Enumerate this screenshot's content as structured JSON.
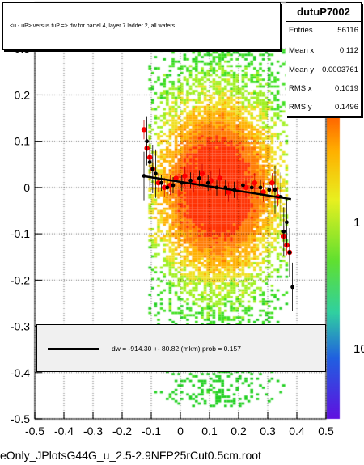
{
  "title": "<u - uP>       versus  tuP =>  dw for barrel 4, layer 7 ladder 2, all wafers",
  "stats": {
    "name": "dutuP7002",
    "rows": [
      {
        "k": "Entries",
        "v": "56116"
      },
      {
        "k": "Mean x",
        "v": "0.112"
      },
      {
        "k": "Mean y",
        "v": "0.0003761"
      },
      {
        "k": "RMS x",
        "v": "0.1019"
      },
      {
        "k": "RMS y",
        "v": "0.1496"
      }
    ]
  },
  "legend": {
    "text": "dw = -914.30 +- 80.82 (mkm) prob = 0.157"
  },
  "file_label": "eOnly_JPlotsG44G_u_2.5-2.9NFP25rCut0.5cm.root",
  "chart_data": {
    "type": "heatmap",
    "xlim": [
      -0.5,
      0.5
    ],
    "ylim": [
      -0.5,
      0.4
    ],
    "x_ticks": [
      "-0.5",
      "-0.4",
      "-0.3",
      "-0.2",
      "-0.1",
      "0",
      "0.1",
      "0.2",
      "0.3",
      "0.4",
      "0.5"
    ],
    "y_ticks": [
      "-0.5",
      "-0.4",
      "-0.3",
      "-0.2",
      "-0.1",
      "0",
      "0.1",
      "0.2",
      "0.3"
    ],
    "z_scale": "log",
    "z_ticks": [
      "10",
      "1"
    ],
    "grid": true,
    "colors": {
      "low": "#20e020",
      "mid": "#f0e020",
      "high": "#ff3000",
      "fit": "#000000",
      "profile_red": "#ff0000"
    },
    "fit_line": {
      "x": [
        -0.13,
        0.38
      ],
      "y": [
        0.025,
        -0.025
      ]
    },
    "profile_black": {
      "x": [
        -0.125,
        -0.115,
        -0.105,
        -0.095,
        -0.085,
        -0.065,
        -0.045,
        -0.025,
        0.005,
        0.035,
        0.065,
        0.095,
        0.125,
        0.155,
        0.185,
        0.215,
        0.245,
        0.275,
        0.305,
        0.325,
        0.345,
        0.355,
        0.365,
        0.375,
        0.385
      ],
      "y": [
        0.025,
        0.1,
        0.055,
        0.04,
        0.03,
        0.01,
        0.0,
        0.005,
        0.01,
        0.015,
        0.02,
        0.01,
        0.0,
        0.0,
        -0.005,
        0.005,
        0.0,
        0.0,
        -0.005,
        -0.005,
        -0.02,
        -0.095,
        -0.075,
        -0.14,
        -0.215
      ]
    },
    "profile_red": {
      "x": [
        -0.125,
        -0.115,
        -0.105,
        -0.095,
        -0.075,
        -0.055,
        -0.035,
        -0.015,
        0.015,
        0.045,
        0.075,
        0.105,
        0.135,
        0.165,
        0.195,
        0.225,
        0.255,
        0.285,
        0.315,
        0.335,
        0.355,
        0.365,
        0.375
      ],
      "y": [
        0.125,
        0.085,
        0.065,
        0.04,
        0.01,
        0.0,
        0.005,
        0.02,
        0.025,
        0.01,
        0.03,
        0.015,
        0.02,
        -0.01,
        -0.005,
        0.0,
        0.01,
        -0.01,
        0.01,
        -0.02,
        -0.105,
        -0.125,
        -0.14
      ]
    }
  }
}
